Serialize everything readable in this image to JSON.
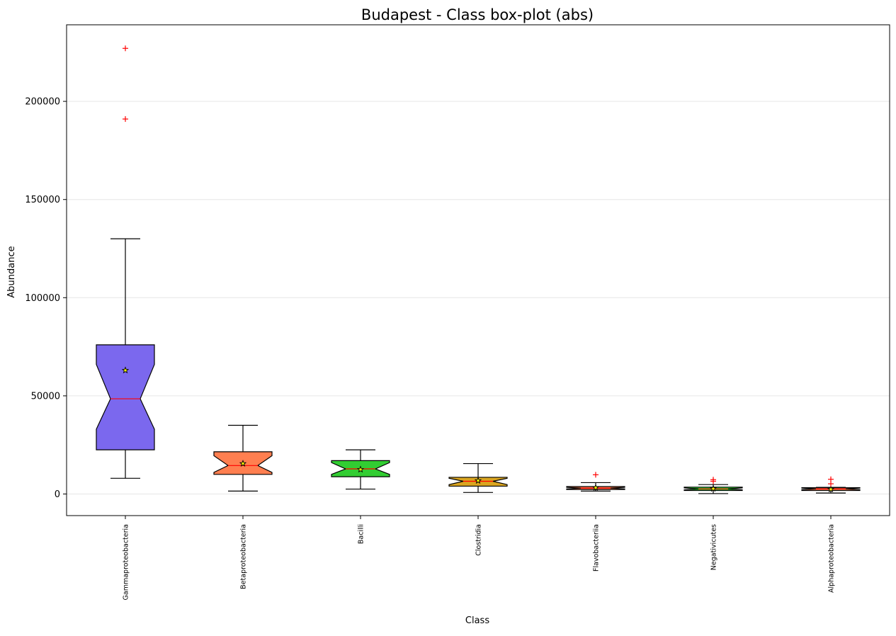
{
  "chart_data": {
    "type": "boxplot",
    "title": "Budapest - Class box-plot (abs)",
    "xlabel": "Class",
    "ylabel": "Abundance",
    "ylim": [
      -11000,
      239000
    ],
    "yticks": [
      0,
      50000,
      100000,
      150000,
      200000
    ],
    "ytick_labels": [
      "0",
      "50000",
      "100000",
      "150000",
      "200000"
    ],
    "grid": "horizontal",
    "notched": true,
    "categories": [
      "Gammaproteobacteria",
      "Betaproteobacteria",
      "Bacilli",
      "Clostridia",
      "Flavobacteriia",
      "Negativicutes",
      "Alphaproteobacteria"
    ],
    "boxes": [
      {
        "category": "Gammaproteobacteria",
        "color": "#7b68ee",
        "whisker_low": 8000,
        "q1": 22500,
        "median": 48500,
        "q3": 76000,
        "whisker_high": 130000,
        "mean": 63000,
        "notch_low": 33000,
        "notch_high": 66000,
        "outliers": [
          191000,
          227000
        ]
      },
      {
        "category": "Betaproteobacteria",
        "color": "#ff7f50",
        "whisker_low": 1500,
        "q1": 10000,
        "median": 14500,
        "q3": 21500,
        "whisker_high": 35000,
        "mean": 15500,
        "notch_low": 11000,
        "notch_high": 19500,
        "outliers": []
      },
      {
        "category": "Bacilli",
        "color": "#32cd32",
        "whisker_low": 2500,
        "q1": 8800,
        "median": 12800,
        "q3": 17000,
        "whisker_high": 22500,
        "mean": 12500,
        "notch_low": 10000,
        "notch_high": 16000,
        "outliers": []
      },
      {
        "category": "Clostridia",
        "color": "#daa520",
        "whisker_low": 800,
        "q1": 4000,
        "median": 6500,
        "q3": 8500,
        "whisker_high": 15500,
        "mean": 6800,
        "notch_low": 4800,
        "notch_high": 8000,
        "outliers": []
      },
      {
        "category": "Flavobacteriia",
        "color": "#ff7f50",
        "whisker_low": 1500,
        "q1": 2300,
        "median": 3000,
        "q3": 3800,
        "whisker_high": 5800,
        "mean": 3200,
        "notch_low": 2600,
        "notch_high": 3400,
        "outliers": [
          9800
        ]
      },
      {
        "category": "Negativicutes",
        "color": "#32cd32",
        "whisker_low": 200,
        "q1": 1800,
        "median": 2600,
        "q3": 3500,
        "whisker_high": 4800,
        "mean": 2700,
        "notch_low": 2100,
        "notch_high": 3100,
        "outliers": [
          6500,
          7300
        ]
      },
      {
        "category": "Alphaproteobacteria",
        "color": "#ff7f50",
        "whisker_low": 500,
        "q1": 1800,
        "median": 2600,
        "q3": 3200,
        "whisker_high": 3400,
        "mean": 2400,
        "notch_low": 2200,
        "notch_high": 3000,
        "outliers": [
          5200,
          7500
        ]
      }
    ],
    "colors": {
      "median_line": "#ff0000",
      "outlier_marker": "#ff0000",
      "mean_marker_fill": "#ffff00",
      "grid": "#e6e6e6"
    }
  }
}
